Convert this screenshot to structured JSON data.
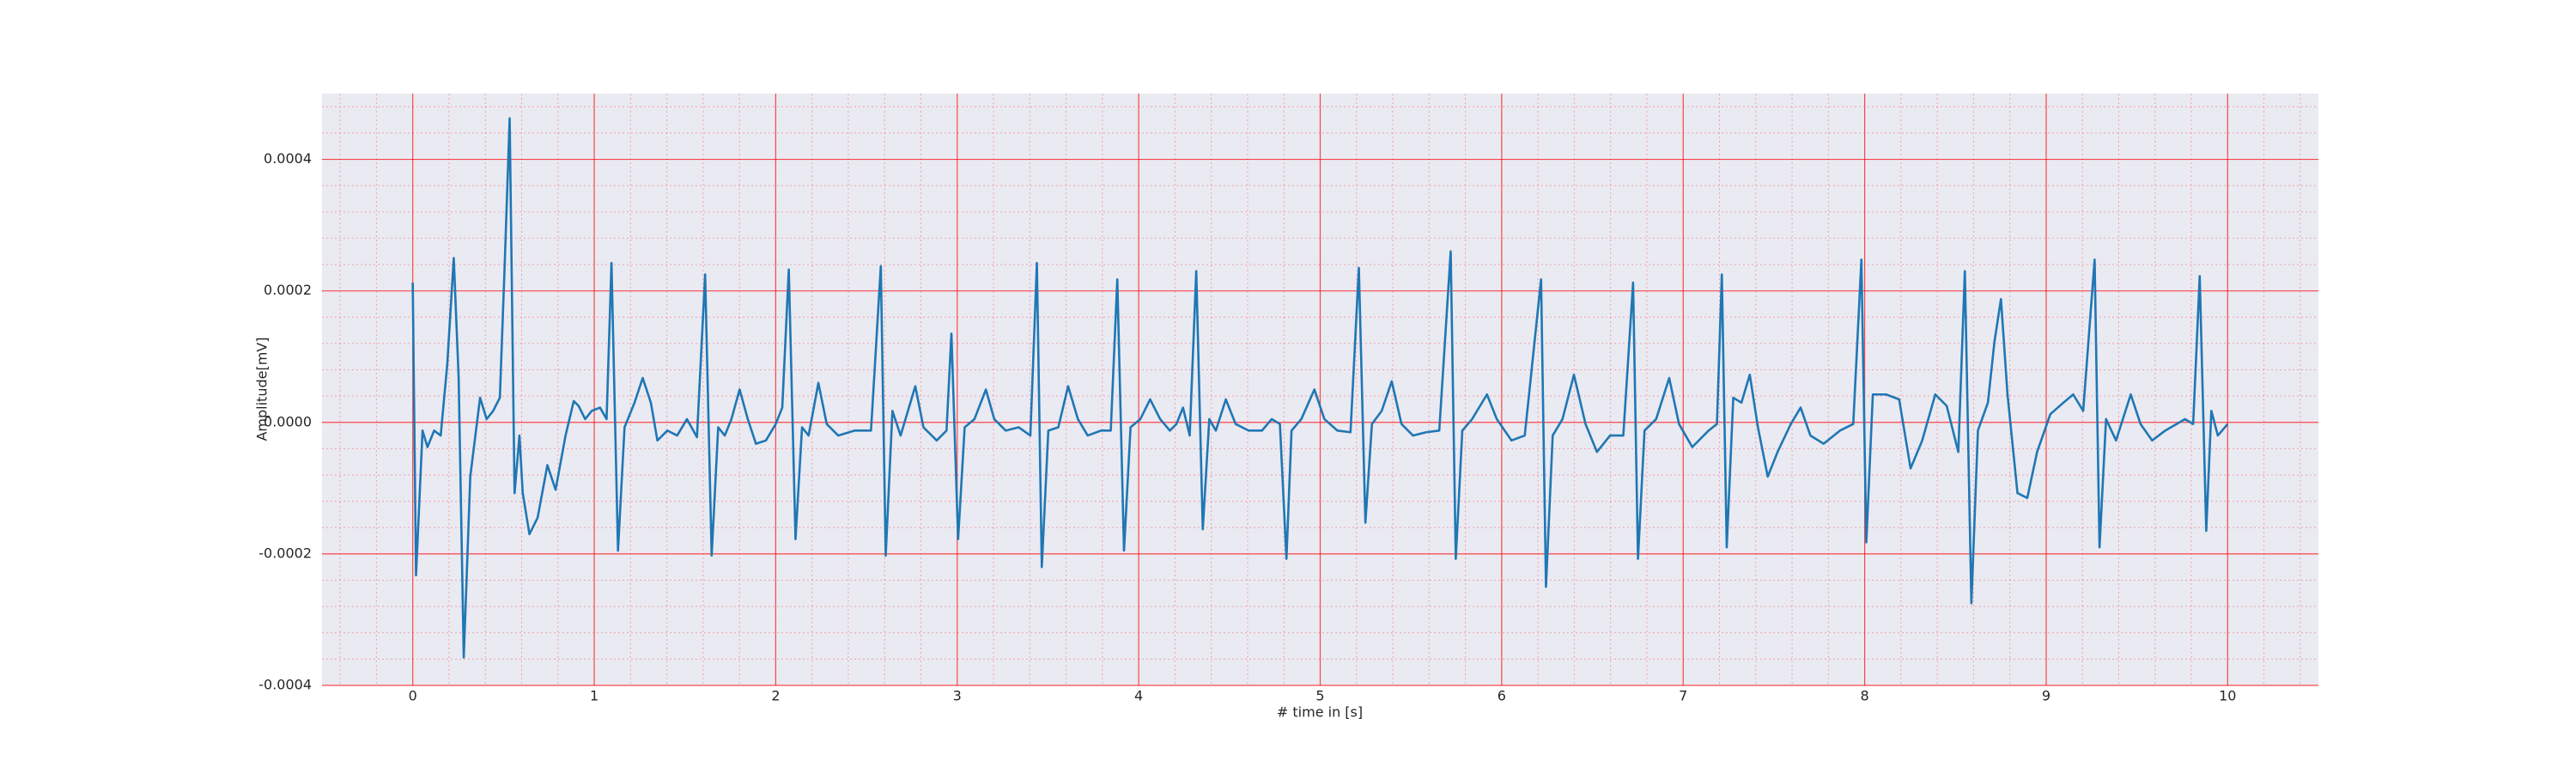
{
  "chart_data": {
    "type": "line",
    "xlabel": "# time in [s]",
    "ylabel": "Amplitude[mV]",
    "color": "#1f77b4",
    "grid": true,
    "grid_color": "#ff0000",
    "minor_grid": true,
    "minor_divisions": 5,
    "xlim": [
      -0.5,
      10.5
    ],
    "xticks": [
      0,
      1,
      2,
      3,
      4,
      5,
      6,
      7,
      8,
      9,
      10
    ],
    "ylim": [
      -0.0004,
      0.0005
    ],
    "yticks": [
      -0.0004,
      -0.0002,
      {
        "value": 0,
        "label": "0.0000"
      },
      0.0002,
      0.0004
    ],
    "x": [
      0,
      0.018,
      0.054,
      0.081,
      0.118,
      0.154,
      0.19,
      0.226,
      0.253,
      0.281,
      0.317,
      0.371,
      0.407,
      0.443,
      0.48,
      0.507,
      0.534,
      0.561,
      0.588,
      0.606,
      0.643,
      0.688,
      0.742,
      0.787,
      0.842,
      0.887,
      0.914,
      0.95,
      0.986,
      1.032,
      1.068,
      1.095,
      1.131,
      1.167,
      1.222,
      1.267,
      1.312,
      1.348,
      1.403,
      1.457,
      1.511,
      1.566,
      1.611,
      1.647,
      1.683,
      1.719,
      1.756,
      1.801,
      1.846,
      1.891,
      1.946,
      2.0,
      2.036,
      2.072,
      2.109,
      2.145,
      2.181,
      2.235,
      2.281,
      2.344,
      2.434,
      2.525,
      2.579,
      2.606,
      2.643,
      2.688,
      2.769,
      2.814,
      2.887,
      2.941,
      2.968,
      3.005,
      3.041,
      3.095,
      3.158,
      3.204,
      3.267,
      3.339,
      3.403,
      3.439,
      3.466,
      3.502,
      3.557,
      3.611,
      3.665,
      3.719,
      3.792,
      3.846,
      3.882,
      3.919,
      3.955,
      4.009,
      4.063,
      4.118,
      4.172,
      4.208,
      4.244,
      4.281,
      4.317,
      4.353,
      4.389,
      4.425,
      4.48,
      4.534,
      4.606,
      4.679,
      4.733,
      4.778,
      4.814,
      4.842,
      4.896,
      4.968,
      5.023,
      5.095,
      5.167,
      5.213,
      5.249,
      5.285,
      5.339,
      5.394,
      5.448,
      5.511,
      5.584,
      5.656,
      5.719,
      5.747,
      5.783,
      5.837,
      5.919,
      5.973,
      6.054,
      6.127,
      6.217,
      6.244,
      6.281,
      6.335,
      6.398,
      6.462,
      6.525,
      6.597,
      6.67,
      6.724,
      6.751,
      6.787,
      6.851,
      6.923,
      6.977,
      7.05,
      7.14,
      7.186,
      7.213,
      7.24,
      7.276,
      7.321,
      7.367,
      7.412,
      7.466,
      7.52,
      7.593,
      7.647,
      7.701,
      7.774,
      7.864,
      7.937,
      7.982,
      8.009,
      8.045,
      8.118,
      8.19,
      8.253,
      8.317,
      8.389,
      8.452,
      8.516,
      8.552,
      8.588,
      8.624,
      8.679,
      8.715,
      8.751,
      8.787,
      8.842,
      8.896,
      8.95,
      9.023,
      9.095,
      9.149,
      9.204,
      9.267,
      9.294,
      9.33,
      9.385,
      9.466,
      9.52,
      9.584,
      9.656,
      9.765,
      9.81,
      9.846,
      9.882,
      9.91,
      9.946,
      10.0
    ],
    "values": [
      0.0002125,
      -0.0002325,
      -1.25e-05,
      -3.75e-05,
      -1.25e-05,
      -2e-05,
      8.75e-05,
      0.00025,
      6.75e-05,
      -0.0003575,
      -8.25e-05,
      3.75e-05,
      5e-06,
      1.75e-05,
      3.75e-05,
      0.0002425,
      0.0004625,
      -0.0001075,
      -2e-05,
      -0.0001075,
      -0.00017,
      -0.000145,
      -6.5e-05,
      -0.0001025,
      -2e-05,
      3.25e-05,
      2.5e-05,
      5e-06,
      1.75e-05,
      2.25e-05,
      5e-06,
      0.0002425,
      -0.000195,
      -7.5e-06,
      3e-05,
      6.75e-05,
      3e-05,
      -2.75e-05,
      -1.25e-05,
      -2e-05,
      5e-06,
      -2.25e-05,
      0.000225,
      -0.0002025,
      -7.5e-06,
      -2e-05,
      5e-06,
      5e-05,
      5e-06,
      -3.25e-05,
      -2.75e-05,
      -2.5e-06,
      2.25e-05,
      0.0002325,
      -0.0001775,
      -7.5e-06,
      -2e-05,
      6e-05,
      -2.5e-06,
      -2e-05,
      -1.25e-05,
      -1.25e-05,
      0.0002375,
      -0.0002025,
      1.75e-05,
      -2e-05,
      5.5e-05,
      -7.5e-06,
      -2.75e-05,
      -1.25e-05,
      0.000135,
      -0.0001775,
      -7.5e-06,
      5e-06,
      5e-05,
      5e-06,
      -1.25e-05,
      -7.5e-06,
      -2e-05,
      0.0002425,
      -0.00022,
      -1.25e-05,
      -7.5e-06,
      5.5e-05,
      5e-06,
      -2e-05,
      -1.25e-05,
      -1.25e-05,
      0.0002175,
      -0.000195,
      -7.5e-06,
      5e-06,
      3.5e-05,
      5e-06,
      -1.25e-05,
      -2.5e-06,
      2.25e-05,
      -2e-05,
      0.00023,
      -0.0001625,
      5e-06,
      -1.25e-05,
      3.5e-05,
      -2.5e-06,
      -1.25e-05,
      -1.25e-05,
      5e-06,
      -2.5e-06,
      -0.0002075,
      -1.25e-05,
      5e-06,
      5e-05,
      5e-06,
      -1.25e-05,
      -1.5e-05,
      0.000235,
      -0.0001525,
      -2.5e-06,
      1.75e-05,
      6.25e-05,
      -2.5e-06,
      -2e-05,
      -1.5e-05,
      -1.25e-05,
      0.00026,
      -0.0002075,
      -1.25e-05,
      5e-06,
      4.25e-05,
      5e-06,
      -2.75e-05,
      -2e-05,
      0.0002175,
      -0.00025,
      -2e-05,
      5e-06,
      7.25e-05,
      -2.5e-06,
      -4.5e-05,
      -2e-05,
      -2e-05,
      0.0002125,
      -0.0002075,
      -1.25e-05,
      5e-06,
      6.75e-05,
      -2.5e-06,
      -3.75e-05,
      -1.25e-05,
      -2.5e-06,
      0.000225,
      -0.00019,
      3.75e-05,
      3e-05,
      7.25e-05,
      -7.5e-06,
      -8.25e-05,
      -4.5e-05,
      -2.5e-06,
      2.25e-05,
      -2e-05,
      -3.25e-05,
      -1.25e-05,
      -2.5e-06,
      0.0002475,
      -0.0001825,
      4.25e-05,
      4.25e-05,
      3.5e-05,
      -7e-05,
      -2.75e-05,
      4.25e-05,
      2.5e-05,
      -4.5e-05,
      0.00023,
      -0.000275,
      -1.25e-05,
      3e-05,
      0.0001225,
      0.0001875,
      4.25e-05,
      -0.0001075,
      -0.000115,
      -4.5e-05,
      1.25e-05,
      3e-05,
      4.25e-05,
      1.75e-05,
      0.0002475,
      -0.00019,
      5e-06,
      -2.75e-05,
      4.25e-05,
      -2.5e-06,
      -2.75e-05,
      -1.25e-05,
      5e-06,
      -2.5e-06,
      0.0002225,
      -0.000165,
      1.75e-05,
      -2e-05,
      -2.5e-06
    ]
  }
}
